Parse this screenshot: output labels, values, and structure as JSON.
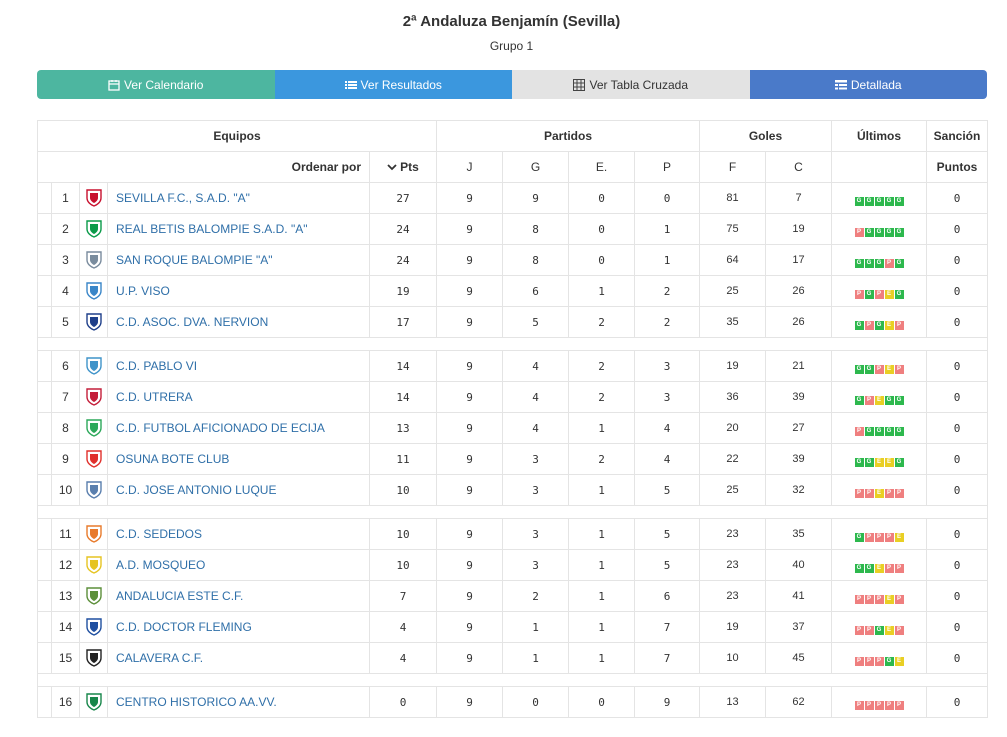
{
  "header": {
    "title": "2ª Andaluza Benjamín (Sevilla)",
    "subtitle": "Grupo 1"
  },
  "buttons": {
    "calendar": "Ver Calendario",
    "results": "Ver Resultados",
    "cross_table": "Ver Tabla Cruzada",
    "detailed": "Detallada"
  },
  "table_headers": {
    "teams": "Equipos",
    "matches": "Partidos",
    "goals": "Goles",
    "last": "Últimos",
    "sanction": "Sanción",
    "sort_by": "Ordenar por",
    "pts": "Pts",
    "j": "J",
    "g": "G",
    "e": "E.",
    "p": "P",
    "f": "F",
    "c": "C",
    "points": "Puntos"
  },
  "teams": [
    {
      "pos": "1",
      "name": "SEVILLA F.C., S.A.D. \"A\"",
      "pts": "27",
      "j": "9",
      "g": "9",
      "e": "0",
      "p": "0",
      "f": "81",
      "c": "7",
      "last": [
        "G",
        "G",
        "G",
        "G",
        "G"
      ],
      "sancion": "0",
      "crest_color": "#c8102e"
    },
    {
      "pos": "2",
      "name": "REAL BETIS BALOMPIE S.A.D. \"A\"",
      "pts": "24",
      "j": "9",
      "g": "8",
      "e": "0",
      "p": "1",
      "f": "75",
      "c": "19",
      "last": [
        "P",
        "G",
        "G",
        "G",
        "G"
      ],
      "sancion": "0",
      "crest_color": "#0a9a49"
    },
    {
      "pos": "3",
      "name": "SAN ROQUE BALOMPIE \"A\"",
      "pts": "24",
      "j": "9",
      "g": "8",
      "e": "0",
      "p": "1",
      "f": "64",
      "c": "17",
      "last": [
        "G",
        "G",
        "G",
        "P",
        "G"
      ],
      "sancion": "0",
      "crest_color": "#7a8c9e"
    },
    {
      "pos": "4",
      "name": "U.P. VISO",
      "pts": "19",
      "j": "9",
      "g": "6",
      "e": "1",
      "p": "2",
      "f": "25",
      "c": "26",
      "last": [
        "P",
        "G",
        "P",
        "E",
        "G"
      ],
      "sancion": "0",
      "crest_color": "#3a86c8"
    },
    {
      "pos": "5",
      "name": "C.D. ASOC. DVA. NERVION",
      "pts": "17",
      "j": "9",
      "g": "5",
      "e": "2",
      "p": "2",
      "f": "35",
      "c": "26",
      "last": [
        "G",
        "P",
        "G",
        "E",
        "P"
      ],
      "sancion": "0",
      "crest_color": "#1e3f8a"
    },
    {
      "pos": "6",
      "name": "C.D. PABLO VI",
      "pts": "14",
      "j": "9",
      "g": "4",
      "e": "2",
      "p": "3",
      "f": "19",
      "c": "21",
      "last": [
        "G",
        "G",
        "P",
        "E",
        "P"
      ],
      "sancion": "0",
      "crest_color": "#3f93c9"
    },
    {
      "pos": "7",
      "name": "C.D. UTRERA",
      "pts": "14",
      "j": "9",
      "g": "4",
      "e": "2",
      "p": "3",
      "f": "36",
      "c": "39",
      "last": [
        "G",
        "P",
        "E",
        "G",
        "G"
      ],
      "sancion": "0",
      "crest_color": "#c41e3a"
    },
    {
      "pos": "8",
      "name": "C.D. FUTBOL AFICIONADO DE ECIJA",
      "pts": "13",
      "j": "9",
      "g": "4",
      "e": "1",
      "p": "4",
      "f": "20",
      "c": "27",
      "last": [
        "P",
        "G",
        "G",
        "G",
        "G"
      ],
      "sancion": "0",
      "crest_color": "#2ca85a"
    },
    {
      "pos": "9",
      "name": "OSUNA BOTE CLUB",
      "pts": "11",
      "j": "9",
      "g": "3",
      "e": "2",
      "p": "4",
      "f": "22",
      "c": "39",
      "last": [
        "G",
        "G",
        "E",
        "E",
        "G"
      ],
      "sancion": "0",
      "crest_color": "#e0302c"
    },
    {
      "pos": "10",
      "name": "C.D. JOSE ANTONIO LUQUE",
      "pts": "10",
      "j": "9",
      "g": "3",
      "e": "1",
      "p": "5",
      "f": "25",
      "c": "32",
      "last": [
        "P",
        "P",
        "E",
        "P",
        "P"
      ],
      "sancion": "0",
      "crest_color": "#5a7fae"
    },
    {
      "pos": "11",
      "name": "C.D. SEDEDOS",
      "pts": "10",
      "j": "9",
      "g": "3",
      "e": "1",
      "p": "5",
      "f": "23",
      "c": "35",
      "last": [
        "G",
        "P",
        "P",
        "P",
        "E"
      ],
      "sancion": "0",
      "crest_color": "#e87a2b"
    },
    {
      "pos": "12",
      "name": "A.D. MOSQUEO",
      "pts": "10",
      "j": "9",
      "g": "3",
      "e": "1",
      "p": "5",
      "f": "23",
      "c": "40",
      "last": [
        "G",
        "G",
        "E",
        "P",
        "P"
      ],
      "sancion": "0",
      "crest_color": "#e6c422"
    },
    {
      "pos": "13",
      "name": "ANDALUCIA ESTE C.F.",
      "pts": "7",
      "j": "9",
      "g": "2",
      "e": "1",
      "p": "6",
      "f": "23",
      "c": "41",
      "last": [
        "P",
        "P",
        "P",
        "E",
        "P"
      ],
      "sancion": "0",
      "crest_color": "#5c8f3a"
    },
    {
      "pos": "14",
      "name": "C.D. DOCTOR FLEMING",
      "pts": "4",
      "j": "9",
      "g": "1",
      "e": "1",
      "p": "7",
      "f": "19",
      "c": "37",
      "last": [
        "P",
        "P",
        "G",
        "E",
        "P"
      ],
      "sancion": "0",
      "crest_color": "#1f4fa0"
    },
    {
      "pos": "15",
      "name": "CALAVERA C.F.",
      "pts": "4",
      "j": "9",
      "g": "1",
      "e": "1",
      "p": "7",
      "f": "10",
      "c": "45",
      "last": [
        "P",
        "P",
        "P",
        "G",
        "E"
      ],
      "sancion": "0",
      "crest_color": "#222222"
    },
    {
      "pos": "16",
      "name": "CENTRO HISTORICO AA.VV.",
      "pts": "0",
      "j": "9",
      "g": "0",
      "e": "0",
      "p": "9",
      "f": "13",
      "c": "62",
      "last": [
        "P",
        "P",
        "P",
        "P",
        "P"
      ],
      "sancion": "0",
      "crest_color": "#17864a"
    }
  ],
  "colors": {
    "win": "#2db84d",
    "loss": "#ef7f7f",
    "draw": "#e9cf24",
    "link": "#2f6fa8",
    "btn_calendar": "#4db6a0",
    "btn_results": "#3b97de",
    "btn_cross": "#e3e3e3",
    "btn_detailed": "#4a7ac9"
  },
  "icons": {
    "calendar": "calendar-icon",
    "results": "list-icon",
    "cross_table": "table-grid-icon",
    "detailed": "detail-list-icon",
    "sort": "chevron-down-icon"
  }
}
